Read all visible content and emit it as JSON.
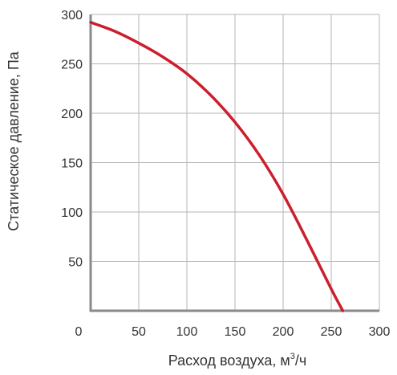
{
  "chart_data": {
    "type": "line",
    "xlabel_prefix": "Расход воздуха, м",
    "xlabel_sup": "3",
    "xlabel_suffix": "/ч",
    "ylabel": "Статическое давление, Па",
    "xlim": [
      0,
      300
    ],
    "ylim": [
      0,
      300
    ],
    "x_ticks": [
      0,
      50,
      100,
      150,
      200,
      250,
      300
    ],
    "y_ticks": [
      50,
      100,
      150,
      200,
      250,
      300
    ],
    "grid": true,
    "series": [
      {
        "color": "#cc1f2d",
        "x": [
          0,
          25,
          50,
          75,
          100,
          125,
          150,
          175,
          200,
          225,
          250,
          262
        ],
        "y": [
          292,
          283,
          271,
          257,
          240,
          218,
          191,
          158,
          118,
          71,
          22,
          0
        ]
      }
    ],
    "colors": {
      "grid": "#b5b5b5",
      "axis": "#8a8a8a",
      "line": "#cc1f2d"
    }
  }
}
